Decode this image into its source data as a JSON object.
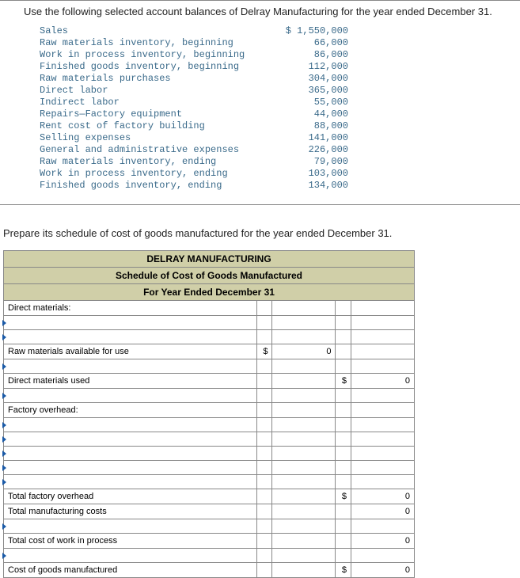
{
  "intro": "Use the following selected account balances of Delray Manufacturing for the year ended December 31.",
  "balances": [
    {
      "label": "Sales",
      "value": "$ 1,550,000"
    },
    {
      "label": "Raw materials inventory, beginning",
      "value": "66,000"
    },
    {
      "label": "Work in process inventory, beginning",
      "value": "86,000"
    },
    {
      "label": "Finished goods inventory, beginning",
      "value": "112,000"
    },
    {
      "label": "Raw materials purchases",
      "value": "304,000"
    },
    {
      "label": "Direct labor",
      "value": "365,000"
    },
    {
      "label": "Indirect labor",
      "value": "55,000"
    },
    {
      "label": "Repairs—Factory equipment",
      "value": "44,000"
    },
    {
      "label": "Rent cost of factory building",
      "value": "88,000"
    },
    {
      "label": "Selling expenses",
      "value": "141,000"
    },
    {
      "label": "General and administrative expenses",
      "value": "226,000"
    },
    {
      "label": "Raw materials inventory, ending",
      "value": "79,000"
    },
    {
      "label": "Work in process inventory, ending",
      "value": "103,000"
    },
    {
      "label": "Finished goods inventory, ending",
      "value": "134,000"
    }
  ],
  "instruction": "Prepare its schedule of cost of goods manufactured for the year ended December 31.",
  "schedule": {
    "header1": "DELRAY MANUFACTURING",
    "header2": "Schedule of Cost of Goods Manufactured",
    "header3": "For Year Ended December 31",
    "rows": {
      "direct_materials": "Direct materials:",
      "raw_avail": "Raw materials available for use",
      "dir_mat_used": "Direct materials used",
      "factory_oh": "Factory overhead:",
      "total_foh": "Total factory overhead",
      "total_mfg": "Total manufacturing costs",
      "total_cwip": "Total cost of work in process",
      "cogm": "Cost of goods manufactured"
    },
    "sym_dollar": "$",
    "sym_zero": "0"
  }
}
